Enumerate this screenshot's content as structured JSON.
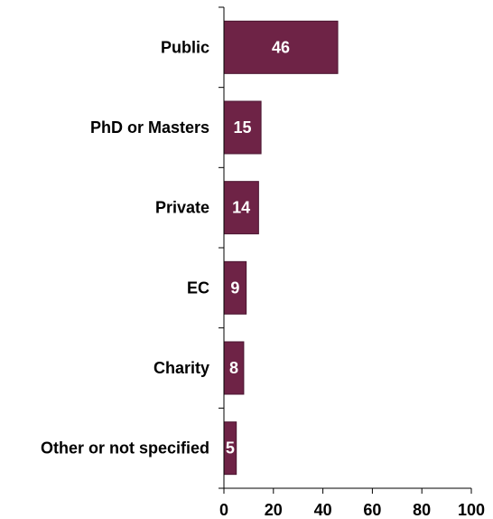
{
  "chart_data": {
    "type": "bar",
    "orientation": "horizontal",
    "categories": [
      "Public",
      "PhD or Masters",
      "Private",
      "EC",
      "Charity",
      "Other or not specified"
    ],
    "values": [
      46,
      15,
      14,
      9,
      8,
      5
    ],
    "data_labels": [
      "46",
      "15",
      "14",
      "9",
      "8",
      "5"
    ],
    "xlim": [
      0,
      100
    ],
    "x_ticks": [
      0,
      20,
      40,
      60,
      80,
      100
    ],
    "x_tick_labels": [
      "0",
      "20",
      "40",
      "60",
      "80",
      "100"
    ],
    "grid": false,
    "legend": "none",
    "title": "",
    "xlabel": "",
    "ylabel": ""
  },
  "colors": {
    "bar_fill": "#6e2346",
    "bar_stroke": "#4a1530",
    "axis": "#000000",
    "data_label": "#ffffff",
    "text": "#000000"
  }
}
